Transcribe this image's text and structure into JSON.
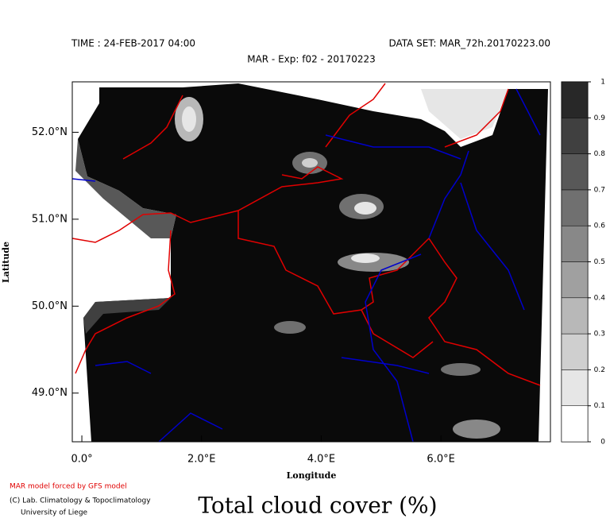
{
  "header": {
    "time": "TIME : 24-FEB-2017 04:00",
    "dataset": "DATA SET: MAR_72h.20170223.00",
    "experiment": "MAR - Exp: f02 - 20170223"
  },
  "map": {
    "x_label": "Longitude",
    "y_label": "Latitude",
    "xlim": [
      -0.16,
      7.83
    ],
    "ylim": [
      48.44,
      52.58
    ],
    "xticks": [
      {
        "value": 0,
        "label": "0.0°"
      },
      {
        "value": 2,
        "label": "2.0°E"
      },
      {
        "value": 4,
        "label": "4.0°E"
      },
      {
        "value": 6,
        "label": "6.0°E"
      }
    ],
    "yticks": [
      {
        "value": 49,
        "label": "49.0°N"
      },
      {
        "value": 50,
        "label": "50.0°N"
      },
      {
        "value": 51,
        "label": "51.0°N"
      },
      {
        "value": 52,
        "label": "52.0°N"
      }
    ],
    "colorbar": {
      "ticks": [
        0,
        0.1,
        0.2,
        0.3,
        0.4,
        0.5,
        0.6,
        0.7,
        0.8,
        0.9,
        1
      ],
      "colors": [
        "#ffffff",
        "#e6e6e6",
        "#cfcfcf",
        "#b8b8b8",
        "#a0a0a0",
        "#888888",
        "#707070",
        "#585858",
        "#404040",
        "#282828"
      ]
    }
  },
  "credits": [
    "MAR model forced by GFS model",
    "(C) Lab. Climatology & Topoclimatology",
    "University of Liege"
  ],
  "title": "Total cloud cover (%)"
}
